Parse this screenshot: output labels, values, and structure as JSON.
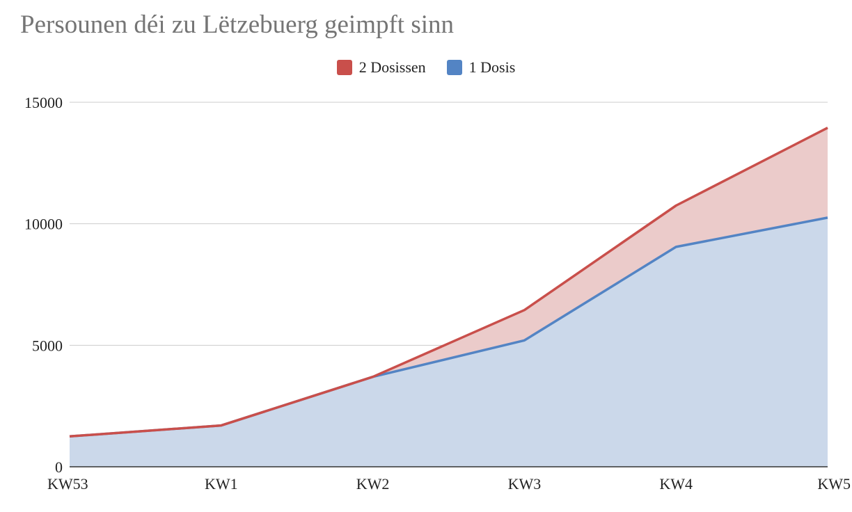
{
  "chart_data": {
    "type": "area",
    "title": "Persounen déi zu Lëtzebuerg geimpft sinn",
    "xlabel": "",
    "ylabel": "",
    "categories": [
      "KW53",
      "KW1",
      "KW2",
      "KW3",
      "KW4",
      "KW5"
    ],
    "ylim": [
      0,
      15000
    ],
    "yticks": [
      0,
      5000,
      10000,
      15000
    ],
    "stacked": true,
    "grid": true,
    "legend_position": "top-center",
    "series": [
      {
        "name": "2 Dosissen",
        "color": "#c94f4b",
        "fill": "#ebcbca",
        "values": [
          0,
          0,
          0,
          1250,
          1700,
          3700
        ]
      },
      {
        "name": "1 Dosis",
        "color": "#5384c4",
        "fill": "#cbd8ea",
        "values": [
          1250,
          1700,
          3700,
          5200,
          9050,
          10250
        ]
      }
    ]
  }
}
